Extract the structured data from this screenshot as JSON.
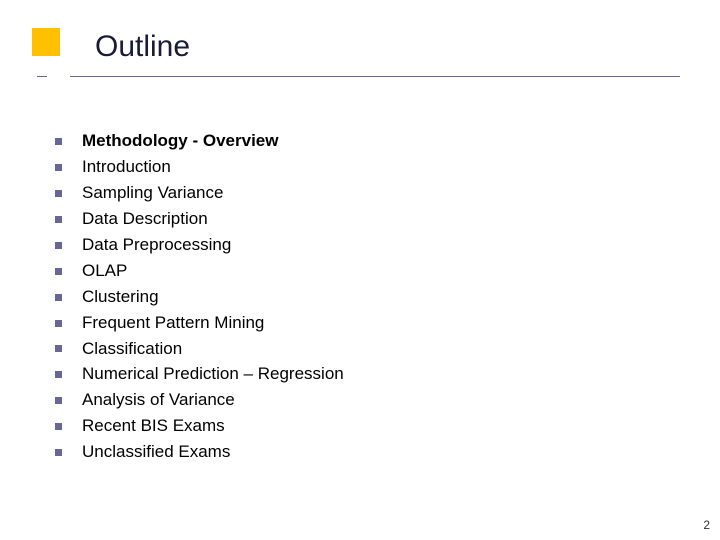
{
  "title": "Outline",
  "items": [
    {
      "text": "Methodology - Overview",
      "bold": true
    },
    {
      "text": "Introduction",
      "bold": false
    },
    {
      "text": "Sampling Variance",
      "bold": false
    },
    {
      "text": "Data Description",
      "bold": false
    },
    {
      "text": "Data Preprocessing",
      "bold": false
    },
    {
      "text": "OLAP",
      "bold": false
    },
    {
      "text": "Clustering",
      "bold": false
    },
    {
      "text": "Frequent Pattern Mining",
      "bold": false
    },
    {
      "text": "Classification",
      "bold": false
    },
    {
      "text": "Numerical Prediction – Regression",
      "bold": false
    },
    {
      "text": "Analysis of Variance",
      "bold": false
    },
    {
      "text": "Recent BIS Exams",
      "bold": false
    },
    {
      "text": "Unclassified Exams",
      "bold": false
    }
  ],
  "page_number": "2",
  "colors": {
    "accent_box": "#ffc000",
    "bullet": "#666699",
    "underline": "#666699",
    "title_text": "#1a1a3a",
    "body_text": "#000000",
    "background": "#ffffff"
  },
  "typography": {
    "title_fontsize": 30,
    "item_fontsize": 17,
    "pagenum_fontsize": 12,
    "font_family": "Verdana"
  }
}
